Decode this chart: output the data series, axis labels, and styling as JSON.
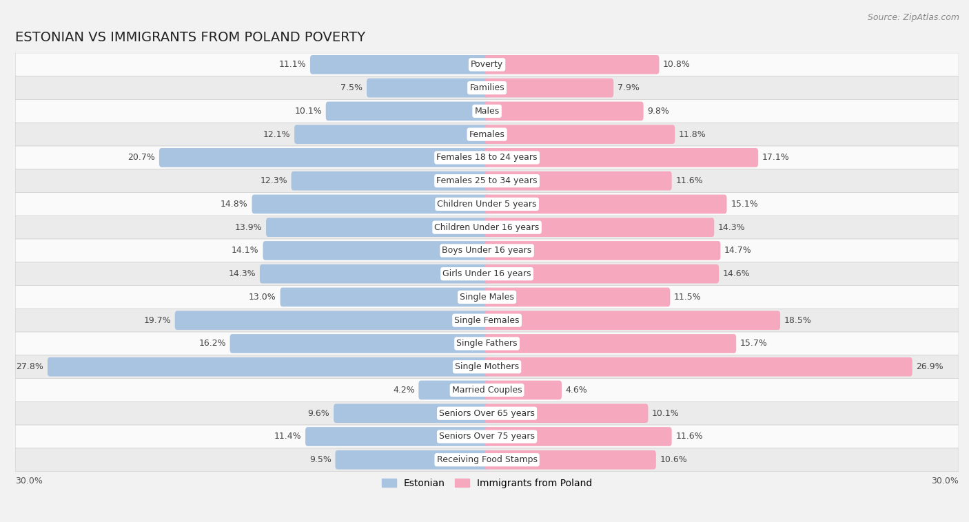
{
  "title": "ESTONIAN VS IMMIGRANTS FROM POLAND POVERTY",
  "source": "Source: ZipAtlas.com",
  "categories": [
    "Poverty",
    "Families",
    "Males",
    "Females",
    "Females 18 to 24 years",
    "Females 25 to 34 years",
    "Children Under 5 years",
    "Children Under 16 years",
    "Boys Under 16 years",
    "Girls Under 16 years",
    "Single Males",
    "Single Females",
    "Single Fathers",
    "Single Mothers",
    "Married Couples",
    "Seniors Over 65 years",
    "Seniors Over 75 years",
    "Receiving Food Stamps"
  ],
  "estonian": [
    11.1,
    7.5,
    10.1,
    12.1,
    20.7,
    12.3,
    14.8,
    13.9,
    14.1,
    14.3,
    13.0,
    19.7,
    16.2,
    27.8,
    4.2,
    9.6,
    11.4,
    9.5
  ],
  "immigrants": [
    10.8,
    7.9,
    9.8,
    11.8,
    17.1,
    11.6,
    15.1,
    14.3,
    14.7,
    14.6,
    11.5,
    18.5,
    15.7,
    26.9,
    4.6,
    10.1,
    11.6,
    10.6
  ],
  "estonian_color": "#a8c4e0",
  "immigrant_color": "#f5a8be",
  "background_color": "#f2f2f2",
  "row_color_light": "#fafafa",
  "row_color_dark": "#ebebeb",
  "row_border_color": "#d0d0d0",
  "max_val": 30.0,
  "label_estonian": "Estonian",
  "label_immigrant": "Immigrants from Poland",
  "title_fontsize": 14,
  "source_fontsize": 9,
  "bar_label_fontsize": 9,
  "cat_label_fontsize": 9,
  "axis_label_fontsize": 9
}
